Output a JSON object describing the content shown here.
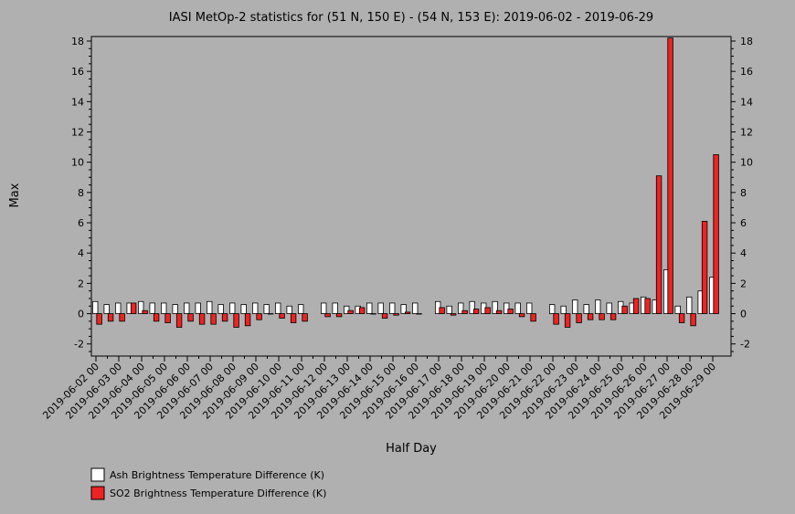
{
  "chart_data": {
    "type": "bar",
    "title": "IASI MetOp-2 statistics for (51 N, 150 E) - (54 N, 153 E): 2019-06-02 - 2019-06-29",
    "xlabel": "Half Day",
    "ylabel": "Max",
    "ylim": [
      -2.8,
      18.3
    ],
    "yticks": [
      -2,
      0,
      2,
      4,
      6,
      8,
      10,
      12,
      14,
      16,
      18
    ],
    "grid": false,
    "legend_position": "bottom-left",
    "categories": [
      "2019-06-02 00",
      "2019-06-02 12",
      "2019-06-03 00",
      "2019-06-03 12",
      "2019-06-04 00",
      "2019-06-04 12",
      "2019-06-05 00",
      "2019-06-05 12",
      "2019-06-06 00",
      "2019-06-06 12",
      "2019-06-07 00",
      "2019-06-07 12",
      "2019-06-08 00",
      "2019-06-08 12",
      "2019-06-09 00",
      "2019-06-09 12",
      "2019-06-10 00",
      "2019-06-10 12",
      "2019-06-11 00",
      "2019-06-11 12",
      "2019-06-12 00",
      "2019-06-12 12",
      "2019-06-13 00",
      "2019-06-13 12",
      "2019-06-14 00",
      "2019-06-14 12",
      "2019-06-15 00",
      "2019-06-15 12",
      "2019-06-16 00",
      "2019-06-16 12",
      "2019-06-17 00",
      "2019-06-17 12",
      "2019-06-18 00",
      "2019-06-18 12",
      "2019-06-19 00",
      "2019-06-19 12",
      "2019-06-20 00",
      "2019-06-20 12",
      "2019-06-21 00",
      "2019-06-21 12",
      "2019-06-22 00",
      "2019-06-22 12",
      "2019-06-23 00",
      "2019-06-23 12",
      "2019-06-24 00",
      "2019-06-24 12",
      "2019-06-25 00",
      "2019-06-25 12",
      "2019-06-26 00",
      "2019-06-26 12",
      "2019-06-27 00",
      "2019-06-27 12",
      "2019-06-28 00",
      "2019-06-28 12",
      "2019-06-29 00"
    ],
    "xtick_labels": [
      "2019-06-02 00",
      "2019-06-03 00",
      "2019-06-04 00",
      "2019-06-05 00",
      "2019-06-06 00",
      "2019-06-07 00",
      "2019-06-08 00",
      "2019-06-09 00",
      "2019-06-10 00",
      "2019-06-11 00",
      "2019-06-12 00",
      "2019-06-13 00",
      "2019-06-14 00",
      "2019-06-15 00",
      "2019-06-16 00",
      "2019-06-17 00",
      "2019-06-18 00",
      "2019-06-19 00",
      "2019-06-20 00",
      "2019-06-21 00",
      "2019-06-22 00",
      "2019-06-23 00",
      "2019-06-24 00",
      "2019-06-25 00",
      "2019-06-26 00",
      "2019-06-27 00",
      "2019-06-28 00",
      "2019-06-29 00"
    ],
    "series": [
      {
        "name": "Ash Brightness Temperature Difference (K)",
        "color": "#ffffff",
        "values": [
          0.8,
          0.6,
          0.7,
          0.7,
          0.8,
          0.7,
          0.7,
          0.6,
          0.7,
          0.7,
          0.8,
          0.6,
          0.7,
          0.6,
          0.7,
          0.6,
          0.7,
          0.5,
          0.6,
          null,
          0.7,
          0.7,
          0.5,
          0.5,
          0.7,
          0.7,
          0.7,
          0.6,
          0.7,
          null,
          0.8,
          0.5,
          0.7,
          0.8,
          0.7,
          0.8,
          0.7,
          0.7,
          0.7,
          null,
          0.6,
          0.5,
          0.9,
          0.6,
          0.9,
          0.7,
          0.8,
          0.7,
          1.1,
          0.9,
          2.9,
          0.5,
          1.1,
          1.5,
          2.4
        ]
      },
      {
        "name": "SO2 Brightness Temperature Difference (K)",
        "color": "#ee2222",
        "values": [
          -0.7,
          -0.5,
          -0.5,
          0.7,
          0.2,
          -0.5,
          -0.6,
          -0.9,
          -0.5,
          -0.7,
          -0.7,
          -0.5,
          -0.9,
          -0.8,
          -0.4,
          0.0,
          -0.3,
          -0.6,
          -0.5,
          null,
          -0.2,
          -0.2,
          0.2,
          0.4,
          0.0,
          -0.3,
          -0.1,
          0.1,
          0.0,
          null,
          0.4,
          -0.1,
          0.2,
          0.3,
          0.4,
          0.2,
          0.3,
          -0.2,
          -0.5,
          null,
          -0.7,
          -0.9,
          -0.6,
          -0.4,
          -0.4,
          -0.4,
          0.5,
          1.0,
          1.0,
          9.1,
          18.2,
          -0.6,
          -0.8,
          6.1,
          10.5
        ]
      }
    ]
  }
}
